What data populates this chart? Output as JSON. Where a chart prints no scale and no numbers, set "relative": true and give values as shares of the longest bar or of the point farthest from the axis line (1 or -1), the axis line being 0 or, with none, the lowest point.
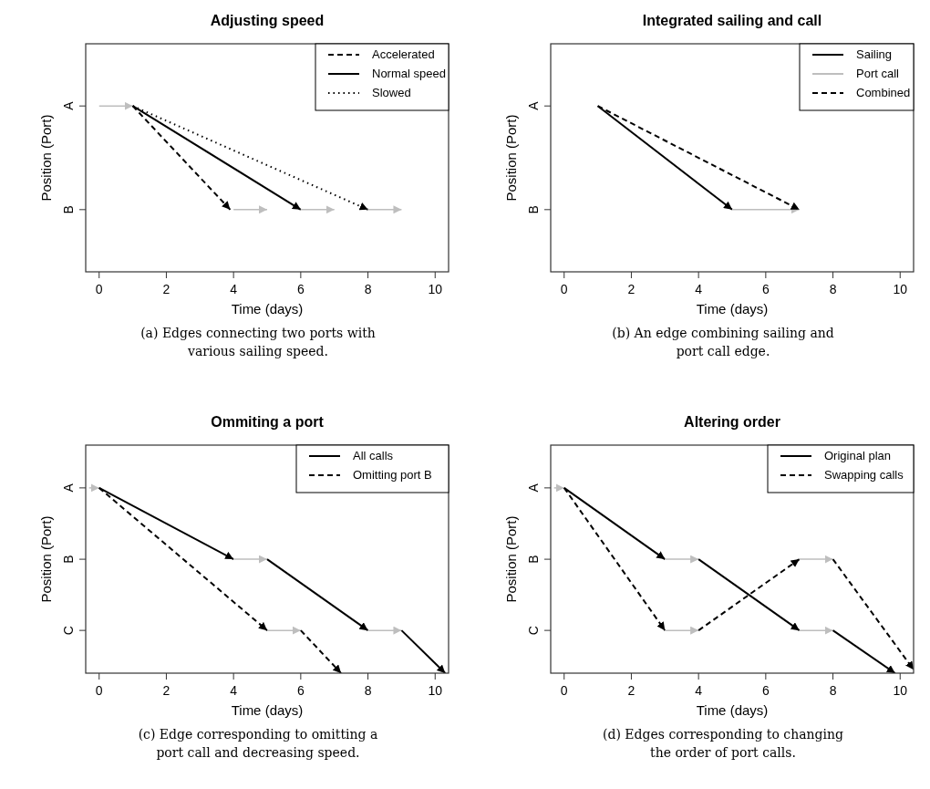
{
  "chart_data": [
    {
      "type": "line",
      "relative": true,
      "title": "Adjusting speed",
      "xlabel": "Time (days)",
      "ylabel": "Position (Port)",
      "xlim": [
        -0.4,
        10.4
      ],
      "xticks": [
        0,
        2,
        4,
        6,
        8,
        10
      ],
      "legend": "top right",
      "annotations": [
        "A",
        "B",
        "(a) Edges connecting two ports with various sailing speed."
      ],
      "series": [
        {
          "color": "#bebebe",
          "line_style": "solid",
          "x": [
            0,
            1
          ],
          "values": [
            1,
            1
          ]
        },
        {
          "name": "Accelerated",
          "color": "#000000",
          "line_style": "dashed",
          "x": [
            1,
            3.9
          ],
          "values": [
            1,
            0.375
          ]
        },
        {
          "color": "#bebebe",
          "line_style": "solid",
          "x": [
            4,
            5
          ],
          "values": [
            0.375,
            0.375
          ]
        },
        {
          "name": "Normal speed",
          "color": "#000000",
          "line_style": "solid",
          "x": [
            1,
            6
          ],
          "values": [
            1,
            0.375
          ]
        },
        {
          "color": "#bebebe",
          "line_style": "solid",
          "x": [
            6,
            7
          ],
          "values": [
            0.375,
            0.375
          ]
        },
        {
          "name": "Slowed",
          "color": "#000000",
          "line_style": "dotted",
          "x": [
            1,
            8
          ],
          "values": [
            1,
            0.375
          ]
        },
        {
          "color": "#bebebe",
          "line_style": "solid",
          "x": [
            8,
            9
          ],
          "values": [
            0.375,
            0.375
          ]
        }
      ]
    },
    {
      "type": "line",
      "relative": true,
      "title": "Integrated sailing and call",
      "xlabel": "Time (days)",
      "ylabel": "Position (Port)",
      "xlim": [
        -0.4,
        10.4
      ],
      "xticks": [
        0,
        2,
        4,
        6,
        8,
        10
      ],
      "legend": "top right",
      "annotations": [
        "A",
        "B",
        "(b) An edge combining sailing and port call edge."
      ],
      "series": [
        {
          "name": "Sailing",
          "color": "#000000",
          "line_style": "solid",
          "x": [
            1,
            5
          ],
          "values": [
            1,
            0.375
          ]
        },
        {
          "name": "Port call",
          "color": "#bebebe",
          "line_style": "solid",
          "x": [
            5,
            7
          ],
          "values": [
            0.375,
            0.375
          ]
        },
        {
          "name": "Combined",
          "color": "#000000",
          "line_style": "dashed",
          "x": [
            1,
            7
          ],
          "values": [
            1,
            0.375
          ]
        }
      ]
    },
    {
      "type": "line",
      "relative": true,
      "title": "Ommiting a port",
      "xlabel": "Time (days)",
      "ylabel": "Position (Port)",
      "xlim": [
        -0.4,
        10.4
      ],
      "xticks": [
        0,
        2,
        4,
        6,
        8,
        10
      ],
      "legend": "top right",
      "annotations": [
        "A",
        "B",
        "C",
        "(c) Edge corresponding to omitting a port call and decreasing speed."
      ],
      "series": [
        {
          "color": "#bebebe",
          "line_style": "solid",
          "x": [
            -0.3,
            0
          ],
          "values": [
            1,
            1
          ]
        },
        {
          "name": "All calls",
          "color": "#000000",
          "line_style": "solid",
          "x": [
            0,
            4
          ],
          "values": [
            1,
            0.615
          ]
        },
        {
          "color": "#bebebe",
          "line_style": "solid",
          "x": [
            4,
            5
          ],
          "values": [
            0.615,
            0.615
          ]
        },
        {
          "color": "#000000",
          "line_style": "solid",
          "x": [
            5,
            8
          ],
          "values": [
            0.615,
            0.231
          ]
        },
        {
          "color": "#bebebe",
          "line_style": "solid",
          "x": [
            8,
            9
          ],
          "values": [
            0.231,
            0.231
          ]
        },
        {
          "color": "#000000",
          "line_style": "solid",
          "x": [
            9,
            10.3
          ],
          "values": [
            0.231,
            0
          ]
        },
        {
          "name": "Omitting port B",
          "color": "#000000",
          "line_style": "dashed",
          "x": [
            0,
            5
          ],
          "values": [
            1,
            0.231
          ]
        },
        {
          "color": "#bebebe",
          "line_style": "solid",
          "x": [
            5,
            6
          ],
          "values": [
            0.231,
            0.231
          ]
        },
        {
          "color": "#000000",
          "line_style": "dashed",
          "x": [
            6,
            7.2
          ],
          "values": [
            0.231,
            0
          ]
        }
      ]
    },
    {
      "type": "line",
      "relative": true,
      "title": "Altering order",
      "xlabel": "Time (days)",
      "ylabel": "Position (Port)",
      "xlim": [
        -0.4,
        10.4
      ],
      "xticks": [
        0,
        2,
        4,
        6,
        8,
        10
      ],
      "legend": "top right",
      "annotations": [
        "A",
        "B",
        "C",
        "(d) Edges corresponding to changing the order of port calls."
      ],
      "series": [
        {
          "color": "#bebebe",
          "line_style": "solid",
          "x": [
            -0.3,
            0
          ],
          "values": [
            1,
            1
          ]
        },
        {
          "name": "Original plan",
          "color": "#000000",
          "line_style": "solid",
          "x": [
            0,
            3
          ],
          "values": [
            1,
            0.615
          ]
        },
        {
          "color": "#bebebe",
          "line_style": "solid",
          "x": [
            3,
            4
          ],
          "values": [
            0.615,
            0.615
          ]
        },
        {
          "color": "#000000",
          "line_style": "solid",
          "x": [
            4,
            7
          ],
          "values": [
            0.615,
            0.231
          ]
        },
        {
          "color": "#bebebe",
          "line_style": "solid",
          "x": [
            7,
            8
          ],
          "values": [
            0.231,
            0.231
          ]
        },
        {
          "color": "#000000",
          "line_style": "solid",
          "x": [
            8,
            9.85
          ],
          "values": [
            0.231,
            0
          ]
        },
        {
          "name": "Swapping calls",
          "color": "#000000",
          "line_style": "dashed",
          "x": [
            0,
            3
          ],
          "values": [
            1,
            0.231
          ]
        },
        {
          "color": "#bebebe",
          "line_style": "solid",
          "x": [
            3,
            4
          ],
          "values": [
            0.231,
            0.231
          ]
        },
        {
          "color": "#000000",
          "line_style": "dashed",
          "x": [
            4,
            7
          ],
          "values": [
            0.231,
            0.615
          ]
        },
        {
          "color": "#bebebe",
          "line_style": "solid",
          "x": [
            7,
            8
          ],
          "values": [
            0.615,
            0.615
          ]
        },
        {
          "color": "#000000",
          "line_style": "dashed",
          "x": [
            8,
            10.4
          ],
          "values": [
            0.615,
            0.019
          ]
        }
      ]
    }
  ]
}
